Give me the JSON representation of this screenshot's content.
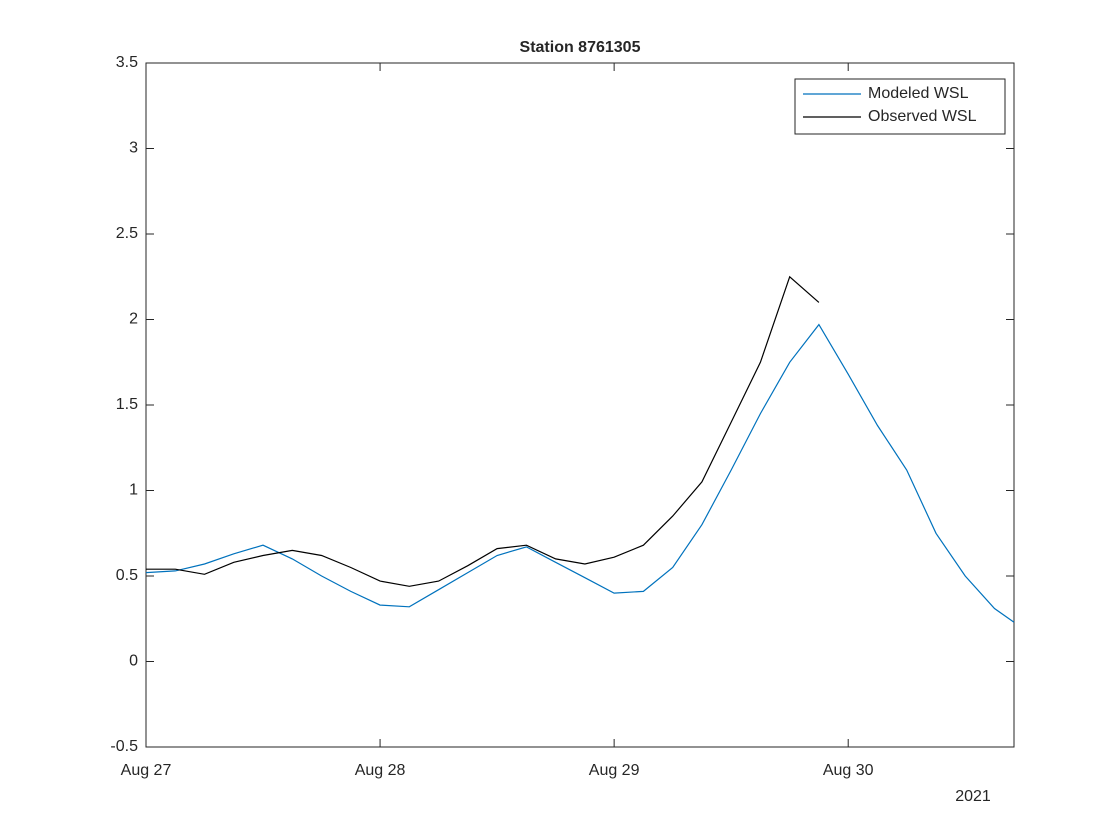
{
  "chart_data": {
    "type": "line",
    "title": "Station 8761305",
    "x": [
      "2021-08-27 00:00",
      "2021-08-27 03:00",
      "2021-08-27 06:00",
      "2021-08-27 09:00",
      "2021-08-27 12:00",
      "2021-08-27 15:00",
      "2021-08-27 18:00",
      "2021-08-27 21:00",
      "2021-08-28 00:00",
      "2021-08-28 03:00",
      "2021-08-28 06:00",
      "2021-08-28 09:00",
      "2021-08-28 12:00",
      "2021-08-28 15:00",
      "2021-08-28 18:00",
      "2021-08-28 21:00",
      "2021-08-29 00:00",
      "2021-08-29 03:00",
      "2021-08-29 06:00",
      "2021-08-29 09:00",
      "2021-08-29 12:00",
      "2021-08-29 15:00",
      "2021-08-29 18:00",
      "2021-08-29 21:00",
      "2021-08-30 00:00",
      "2021-08-30 03:00",
      "2021-08-30 06:00",
      "2021-08-30 09:00",
      "2021-08-30 12:00",
      "2021-08-30 15:00",
      "2021-08-30 17:00"
    ],
    "series": [
      {
        "name": "Modeled WSL",
        "color": "#0072bd",
        "values": [
          0.52,
          0.53,
          0.57,
          0.63,
          0.68,
          0.6,
          0.5,
          0.41,
          0.33,
          0.32,
          0.42,
          0.52,
          0.62,
          0.67,
          0.58,
          0.49,
          0.4,
          0.41,
          0.55,
          0.8,
          1.12,
          1.45,
          1.75,
          1.97,
          1.68,
          1.38,
          1.12,
          0.75,
          0.5,
          0.31,
          0.23
        ]
      },
      {
        "name": "Observed WSL",
        "color": "#000000",
        "values": [
          0.54,
          0.54,
          0.51,
          0.58,
          0.62,
          0.65,
          0.62,
          0.55,
          0.47,
          0.44,
          0.47,
          0.56,
          0.66,
          0.68,
          0.6,
          0.57,
          0.61,
          0.68,
          0.85,
          1.05,
          1.4,
          1.75,
          2.25,
          2.1,
          null,
          null,
          null,
          null,
          null,
          null,
          null
        ]
      }
    ],
    "xlim": [
      "2021-08-27 00:00",
      "2021-08-30 17:00"
    ],
    "xticks": [
      {
        "value": "2021-08-27 00:00",
        "label": "Aug 27"
      },
      {
        "value": "2021-08-28 00:00",
        "label": "Aug 28"
      },
      {
        "value": "2021-08-29 00:00",
        "label": "Aug 29"
      },
      {
        "value": "2021-08-30 00:00",
        "label": "Aug 30"
      }
    ],
    "x_year_label": "2021",
    "ylim": [
      -0.5,
      3.5
    ],
    "yticks": [
      -0.5,
      0,
      0.5,
      1,
      1.5,
      2,
      2.5,
      3,
      3.5
    ],
    "grid": false,
    "legend": "top-right"
  }
}
